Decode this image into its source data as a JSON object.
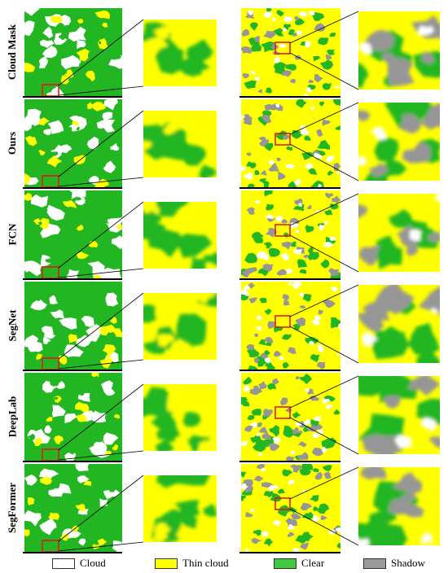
{
  "figure": {
    "rows": [
      {
        "label": "Cloud Mask",
        "left_seed": 11,
        "right_seed": 101,
        "left_zoom_seed": 211,
        "right_zoom_seed": 311
      },
      {
        "label": "Ours",
        "left_seed": 12,
        "right_seed": 102,
        "left_zoom_seed": 212,
        "right_zoom_seed": 312
      },
      {
        "label": "FCN",
        "left_seed": 13,
        "right_seed": 103,
        "left_zoom_seed": 213,
        "right_zoom_seed": 313
      },
      {
        "label": "SegNet",
        "left_seed": 14,
        "right_seed": 104,
        "left_zoom_seed": 214,
        "right_zoom_seed": 314
      },
      {
        "label": "DeepLab",
        "left_seed": 15,
        "right_seed": 105,
        "left_zoom_seed": 215,
        "right_zoom_seed": 315
      },
      {
        "label": "SegFormer",
        "left_seed": 16,
        "right_seed": 106,
        "left_zoom_seed": 216,
        "right_zoom_seed": 316
      }
    ]
  },
  "legend": {
    "items": [
      {
        "label": "Cloud",
        "color": "#ffffff"
      },
      {
        "label": "Thin cloud",
        "color": "#ffff00"
      },
      {
        "label": "Clear",
        "color": "#3ec93e"
      },
      {
        "label": "Shadow",
        "color": "#9a9a9a"
      }
    ]
  },
  "colors": {
    "cloud": "#ffffff",
    "thin_cloud": "#ffff00",
    "clear": "#22b622",
    "shadow": "#969696",
    "highlight_box": "#e41a1c",
    "connector": "#000000",
    "row_separator": "#000000"
  }
}
